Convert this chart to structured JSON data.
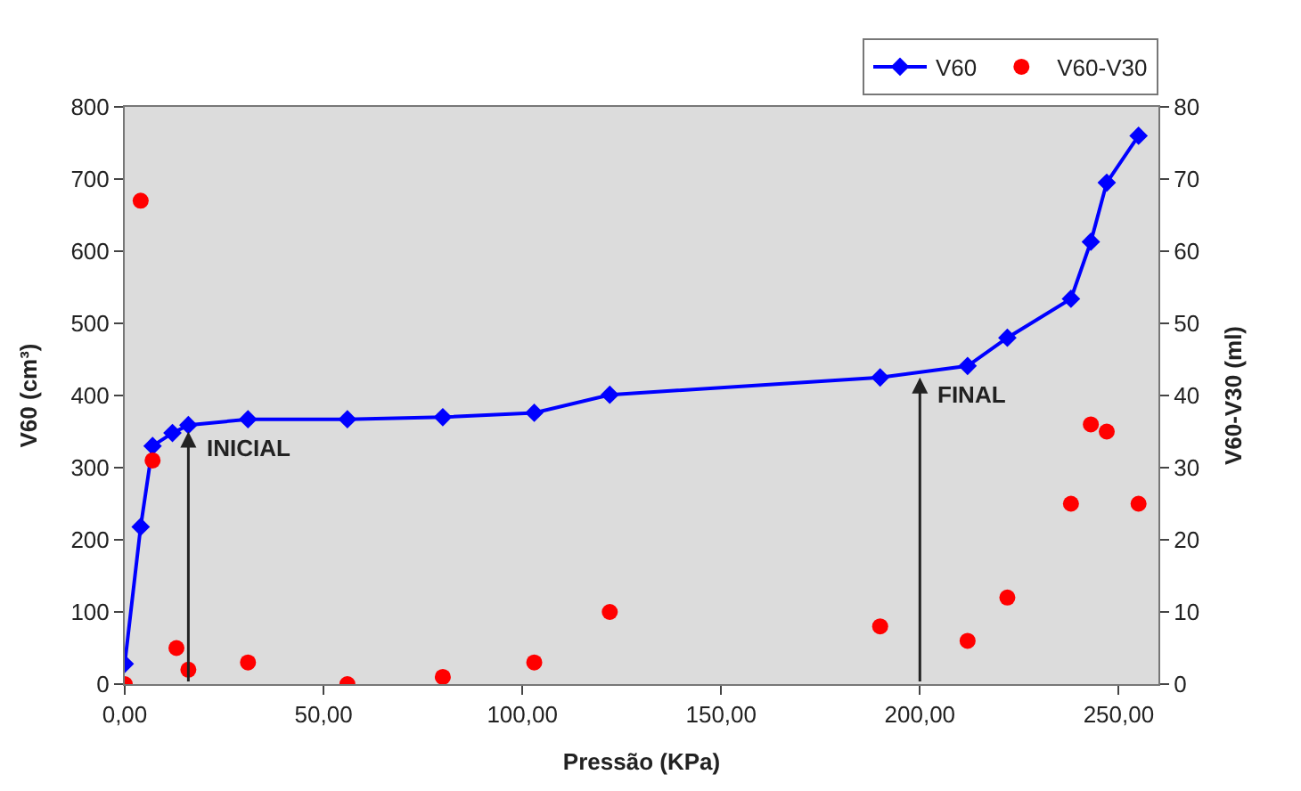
{
  "chart_data": {
    "type": "line",
    "xlabel": "Pressão (KPa)",
    "ylabel": "V60 (cm³)",
    "y2label": "V60-V30 (ml)",
    "xlim": [
      0,
      260
    ],
    "xticks": [
      {
        "value": 0,
        "label": "0,00"
      },
      {
        "value": 50,
        "label": "50,00"
      },
      {
        "value": 100,
        "label": "100,00"
      },
      {
        "value": 150,
        "label": "150,00"
      },
      {
        "value": 200,
        "label": "200,00"
      },
      {
        "value": 250,
        "label": "250,00"
      }
    ],
    "ylim": [
      0,
      800
    ],
    "yticks": [
      0,
      100,
      200,
      300,
      400,
      500,
      600,
      700,
      800
    ],
    "y2lim": [
      0,
      80
    ],
    "y2ticks": [
      0,
      10,
      20,
      30,
      40,
      50,
      60,
      70,
      80
    ],
    "grid": false,
    "legend": "top right",
    "series": [
      {
        "name": "V60",
        "color": "#0000ff",
        "marker": "diamond",
        "line_style": "solid",
        "x": [
          0,
          4,
          7,
          12,
          16,
          31,
          56,
          80,
          103,
          122,
          190,
          212,
          222,
          238,
          243,
          247,
          255
        ],
        "values": [
          28,
          218,
          330,
          348,
          359,
          367,
          367,
          370,
          376,
          401,
          425,
          441,
          480,
          534,
          613,
          695,
          760
        ]
      },
      {
        "name": "V60-V30",
        "type": "scatter",
        "axis": "y2",
        "color": "#ff0000",
        "marker": "circle",
        "x": [
          0,
          4,
          7,
          13,
          16,
          31,
          56,
          80,
          103,
          122,
          190,
          212,
          222,
          238,
          243,
          247,
          255
        ],
        "values": [
          0,
          67,
          31,
          5,
          2,
          3,
          0,
          1,
          3,
          10,
          8,
          6,
          12,
          25,
          36,
          35,
          25
        ]
      }
    ],
    "annotations": [
      {
        "text": "INICIAL",
        "x": 16,
        "y": 350
      },
      {
        "text": "FINAL",
        "x": 200,
        "y": 425
      }
    ]
  }
}
